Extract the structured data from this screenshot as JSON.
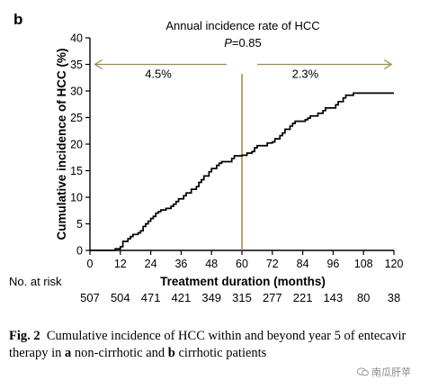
{
  "chart_data": {
    "type": "line",
    "panel_label": "b",
    "title": "Annual incidence rate of HCC",
    "p_value_label": "P",
    "p_value": "=0.85",
    "xlabel": "Treatment duration (months)",
    "ylabel": "Cumulative incidence of HCC (%)",
    "xlim": [
      0,
      120
    ],
    "ylim": [
      0,
      40
    ],
    "xticks": [
      0,
      12,
      24,
      36,
      48,
      60,
      72,
      84,
      96,
      108,
      120
    ],
    "yticks": [
      0,
      5,
      10,
      15,
      20,
      25,
      30,
      35,
      40
    ],
    "grid": false,
    "reference_line_x": 60,
    "annotations": [
      {
        "text": "4.5%",
        "x": 27,
        "y": 32.5
      },
      {
        "text": "2.3%",
        "x": 85,
        "y": 32.5
      }
    ],
    "series": [
      {
        "x": [
          0,
          10,
          12,
          13,
          15,
          16,
          17,
          19,
          20,
          21,
          22,
          23,
          24,
          25,
          26,
          27,
          28,
          30,
          32,
          33,
          34,
          35,
          37,
          38,
          40,
          42,
          43,
          44,
          45,
          47,
          48,
          50,
          51,
          52,
          56,
          57,
          60,
          62,
          64,
          65,
          66,
          70,
          72,
          73,
          75,
          76,
          77,
          79,
          80,
          81,
          85,
          86,
          87,
          90,
          92,
          93,
          97,
          98,
          100,
          101,
          104,
          120
        ],
        "y": [
          0,
          0.3,
          0.7,
          1.7,
          2.2,
          2.6,
          3.0,
          3.3,
          3.7,
          4.5,
          5.0,
          5.5,
          6.0,
          6.4,
          7.0,
          7.3,
          7.6,
          7.9,
          8.3,
          8.7,
          9.2,
          9.7,
          10.3,
          10.8,
          11.5,
          12.0,
          12.8,
          13.3,
          14.0,
          14.8,
          15.4,
          16.0,
          16.4,
          16.7,
          17.3,
          17.8,
          17.9,
          18.3,
          18.6,
          19.3,
          19.7,
          20.2,
          20.4,
          21.0,
          21.6,
          22.1,
          22.8,
          23.4,
          23.9,
          24.3,
          24.6,
          24.9,
          25.3,
          25.8,
          26.3,
          26.8,
          27.4,
          28.0,
          28.7,
          29.2,
          29.6,
          29.6
        ]
      }
    ],
    "at_risk_label": "No. at risk",
    "at_risk": [
      507,
      504,
      471,
      421,
      349,
      315,
      277,
      221,
      143,
      80,
      38
    ]
  },
  "caption": {
    "fig_no": "Fig. 2",
    "parts": [
      "Cumulative incidence of HCC within and beyond year 5 of entecavir therapy in ",
      "a",
      " non-cirrhotic and ",
      "b",
      " cirrhotic patients"
    ]
  },
  "watermark": {
    "text": "南瓜肝苹",
    "icon": "wechat-icon"
  }
}
